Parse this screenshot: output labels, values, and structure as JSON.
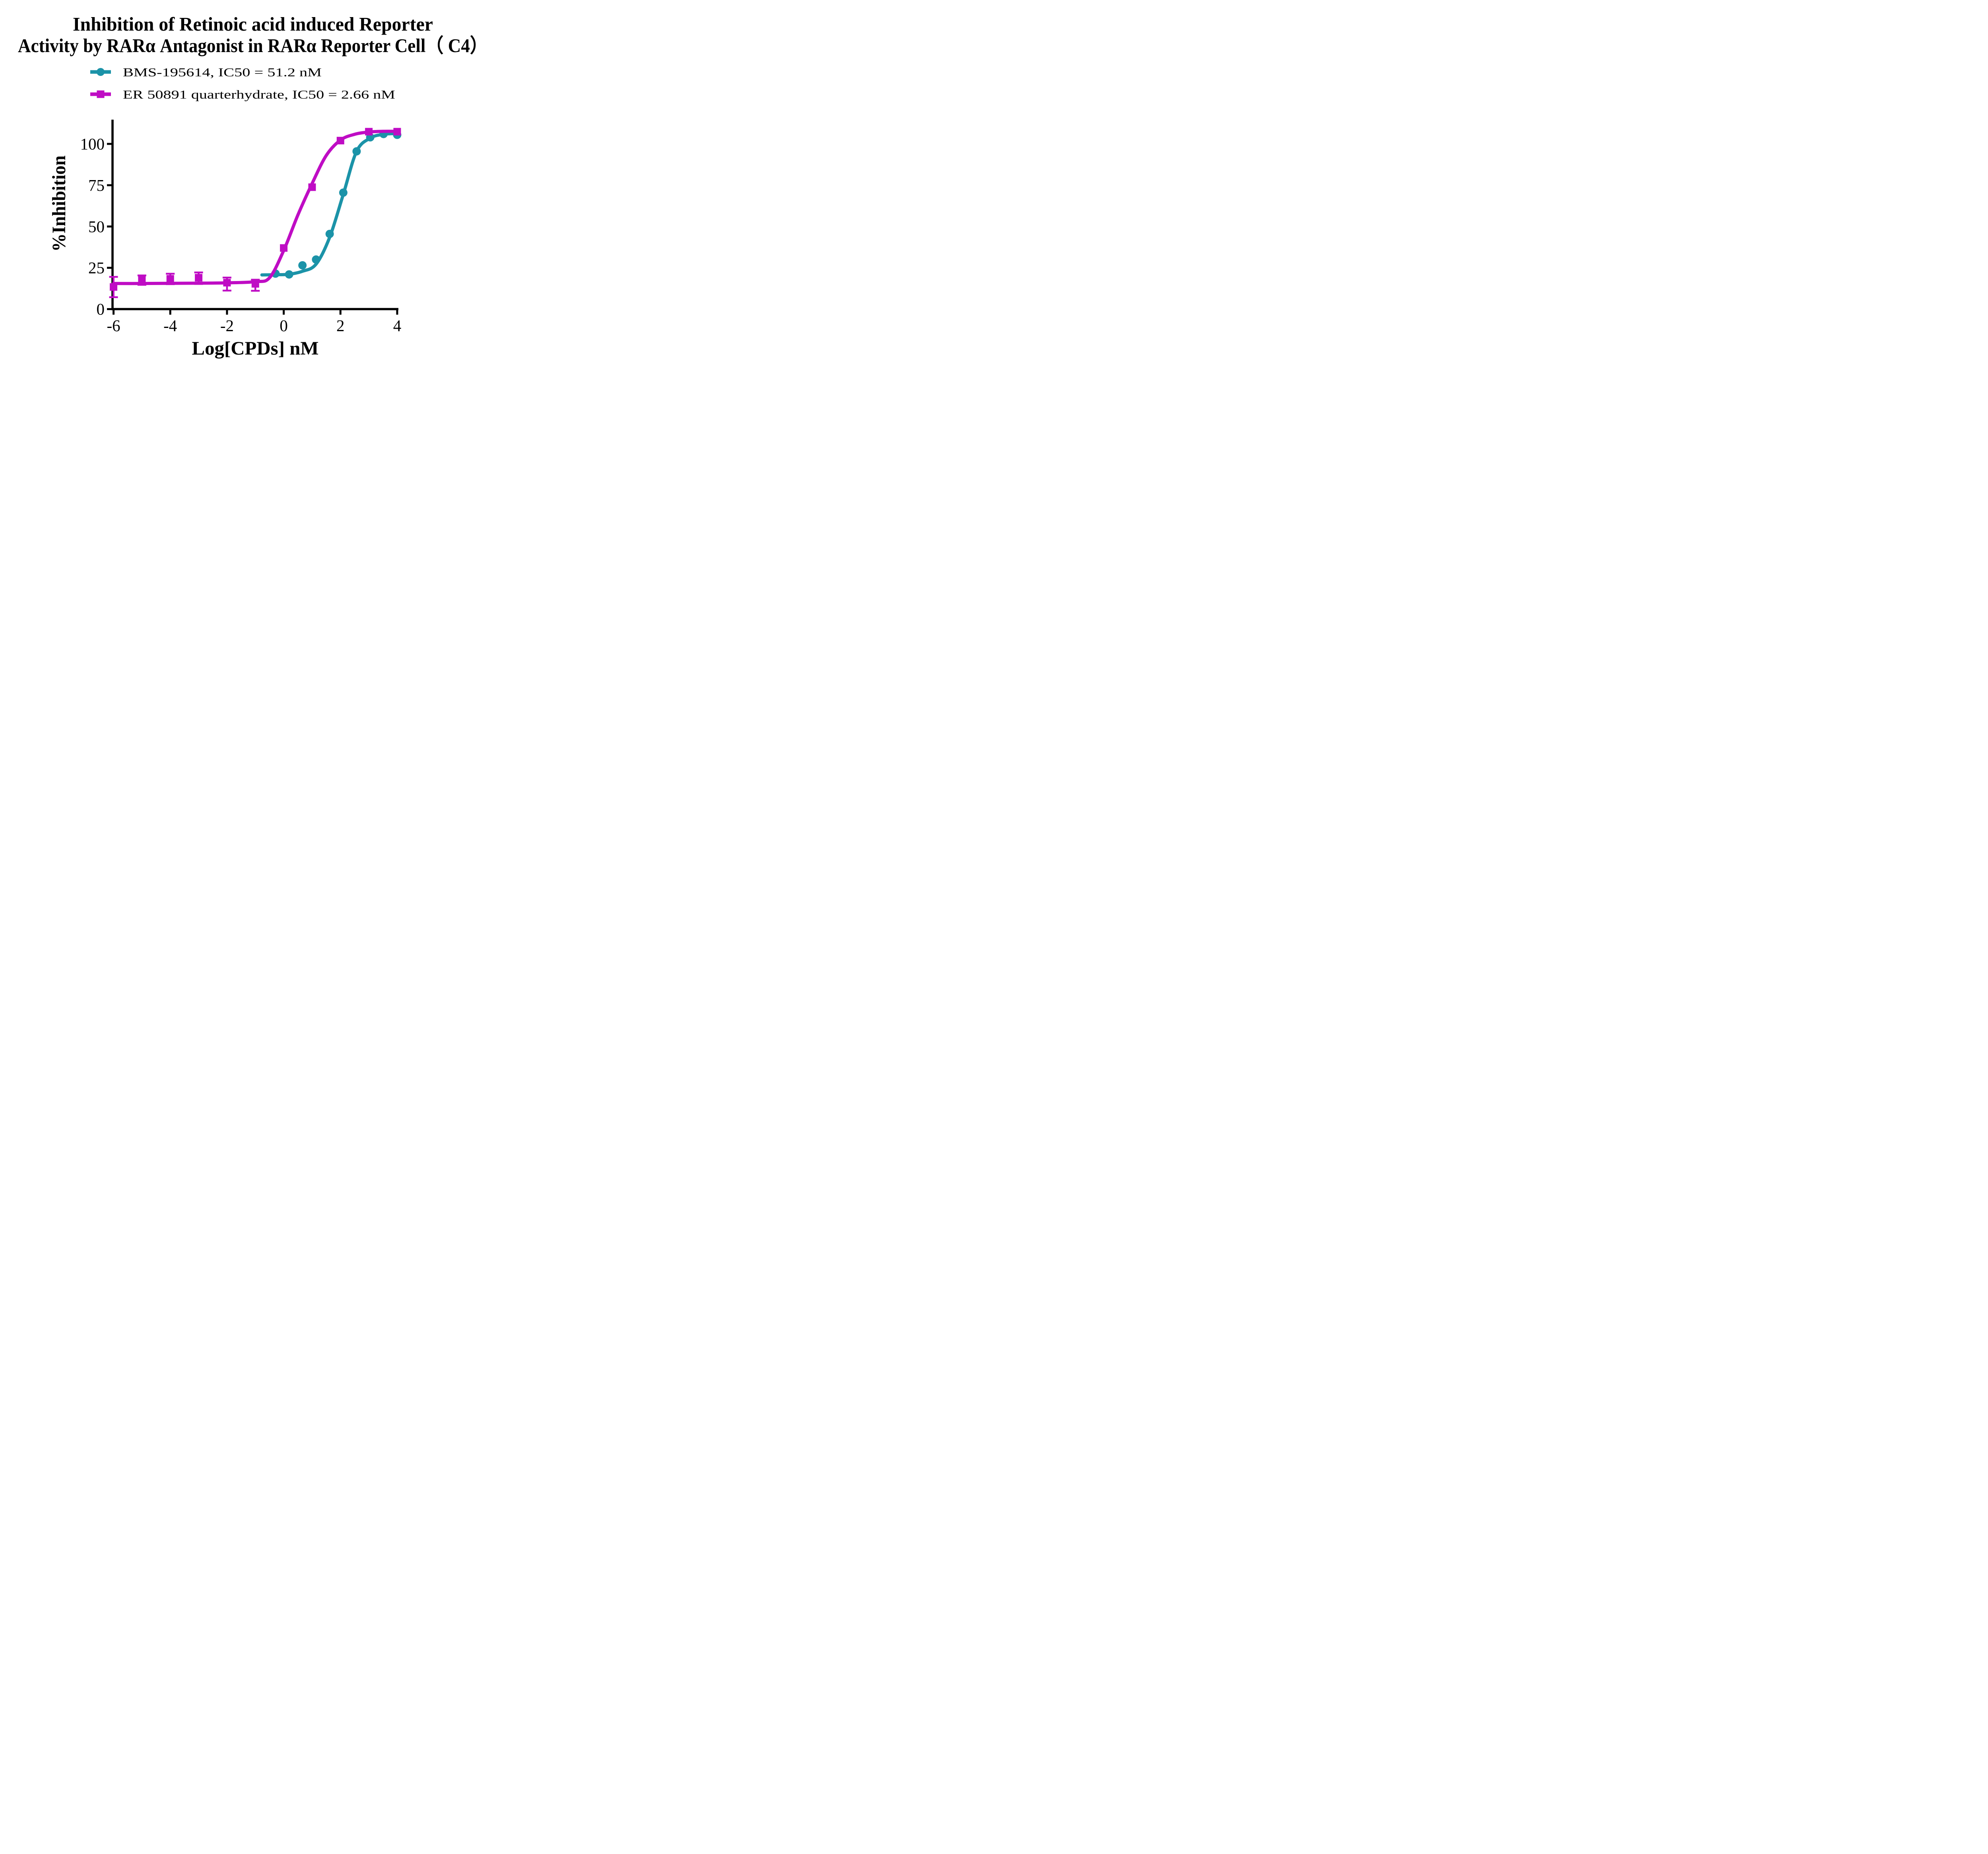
{
  "title": {
    "line1": "Inhibition of Retinoic acid induced Reporter",
    "line2": "Activity by RARα Antagonist in RARα Reporter Cell（ C4）"
  },
  "legend": [
    {
      "label": "BMS-195614, IC50 = 51.2 nM",
      "marker": "circle",
      "color": "#1B93A8"
    },
    {
      "label": "ER 50891 quarterhydrate, IC50 = 2.66 nM",
      "marker": "square",
      "color": "#BF0CC4"
    }
  ],
  "colors": {
    "teal": "#1B93A8",
    "magenta": "#BF0CC4",
    "axis": "#000000",
    "background": "#FFFFFF"
  },
  "chart_data": {
    "type": "scatter",
    "title": "Inhibition of Retinoic acid induced Reporter Activity by RARα Antagonist in RARα Reporter Cell（ C4）",
    "xlabel": "Log[CPDs] nM",
    "ylabel": "%Inhibition",
    "x_ticks": [
      -6,
      -4,
      -2,
      0,
      2,
      4
    ],
    "y_ticks": [
      0,
      25,
      50,
      75,
      100
    ],
    "xlim": [
      -6.45,
      4.1
    ],
    "ylim": [
      0,
      115
    ],
    "grid": false,
    "legend_position": "above-plot-left",
    "series": [
      {
        "name": "BMS-195614",
        "ic50": "51.2 nM",
        "color": "#1B93A8",
        "marker": "circle",
        "x": [
          -0.29,
          0.19,
          0.66,
          1.14,
          1.62,
          2.1,
          2.57,
          3.05,
          3.52,
          4.0
        ],
        "y": [
          21.5,
          21.0,
          26.5,
          30.0,
          45.5,
          70.5,
          95.5,
          104.0,
          106.0,
          105.5
        ],
        "err_lo": [
          0,
          0,
          0,
          0,
          0,
          0,
          0,
          0,
          0,
          0
        ],
        "err_hi": [
          0,
          0,
          0,
          0,
          0,
          0,
          0,
          0,
          0,
          0
        ],
        "fit_curve": [
          [
            -0.77,
            20.7
          ],
          [
            -0.29,
            20.8
          ],
          [
            0.19,
            21.1
          ],
          [
            0.66,
            22.9
          ],
          [
            1.14,
            27.2
          ],
          [
            1.62,
            43.5
          ],
          [
            2.1,
            69.5
          ],
          [
            2.57,
            95.5
          ],
          [
            3.05,
            103.5
          ],
          [
            3.52,
            105.8
          ],
          [
            4.0,
            106.3
          ]
        ]
      },
      {
        "name": "ER 50891 quarterhydrate",
        "ic50": "2.66 nM",
        "color": "#BF0CC4",
        "marker": "square",
        "x": [
          -6,
          -5,
          -4,
          -3,
          -2,
          -1,
          0,
          1,
          2,
          3,
          4
        ],
        "y": [
          13.4,
          17.6,
          18.3,
          19.0,
          16.0,
          15.3,
          37.0,
          73.8,
          102.0,
          107.4,
          107.4
        ],
        "err_lo": [
          6.2,
          2.9,
          3.2,
          3.8,
          4.8,
          4.2,
          0,
          0,
          0,
          0,
          0
        ],
        "err_hi": [
          6.1,
          2.8,
          3.1,
          3.2,
          3.1,
          2.5,
          0,
          0,
          0,
          0,
          0
        ],
        "fit_curve": [
          [
            -6,
            15.5
          ],
          [
            -5,
            15.5
          ],
          [
            -4,
            15.6
          ],
          [
            -3,
            15.7
          ],
          [
            -2,
            15.9
          ],
          [
            -1,
            16.6
          ],
          [
            -0.5,
            19.0
          ],
          [
            0,
            35.5
          ],
          [
            0.5,
            57.0
          ],
          [
            1,
            76.0
          ],
          [
            1.5,
            93.0
          ],
          [
            2,
            102.3
          ],
          [
            2.5,
            105.8
          ],
          [
            3,
            107.2
          ],
          [
            3.5,
            107.6
          ],
          [
            4,
            107.6
          ]
        ]
      }
    ]
  }
}
